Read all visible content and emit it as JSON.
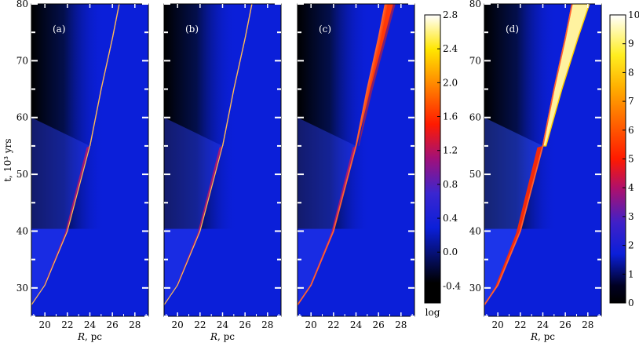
{
  "chart_data": [
    {
      "type": "heatmap",
      "panel_label": "(a)",
      "xlabel": "R, pc",
      "ylabel": "t, 10³ yrs",
      "xlim": [
        18.8,
        29.2
      ],
      "ylim": [
        25,
        80
      ],
      "xticks": [
        "20",
        "22",
        "24",
        "26",
        "28"
      ],
      "yticks": [
        "30",
        "40",
        "50",
        "60",
        "70",
        "80"
      ],
      "colorbar": "log",
      "features": {
        "shock_track_R": [
          [
            18.8,
            27
          ],
          [
            20,
            30.5
          ],
          [
            22,
            40
          ],
          [
            24,
            55
          ],
          [
            25,
            65
          ],
          [
            26,
            74
          ],
          [
            26.6,
            80
          ]
        ],
        "emission_peak": 0.9,
        "post_55_width": "thin"
      }
    },
    {
      "type": "heatmap",
      "panel_label": "(b)",
      "xlabel": "R, pc",
      "ylabel": "",
      "xlim": [
        18.8,
        29.2
      ],
      "ylim": [
        25,
        80
      ],
      "xticks": [
        "20",
        "22",
        "24",
        "26",
        "28"
      ],
      "yticks": [],
      "colorbar": "log",
      "features": {
        "shock_track_R": [
          [
            18.8,
            27
          ],
          [
            20,
            30.5
          ],
          [
            22,
            40
          ],
          [
            24,
            55
          ],
          [
            25,
            65
          ],
          [
            26,
            74
          ],
          [
            26.6,
            80
          ]
        ],
        "emission_peak": 0.9,
        "post_55_width": "thin"
      }
    },
    {
      "type": "heatmap",
      "panel_label": "(c)",
      "xlabel": "",
      "ylabel": "",
      "xlim": [
        18.8,
        29.2
      ],
      "ylim": [
        25,
        80
      ],
      "xticks": [
        "20",
        "22",
        "24",
        "26",
        "28"
      ],
      "yticks": [],
      "colorbar": "log",
      "features": {
        "shock_track_R": [
          [
            18.8,
            27
          ],
          [
            20,
            30.5
          ],
          [
            22,
            40
          ],
          [
            24,
            55
          ],
          [
            25,
            65
          ],
          [
            26,
            74
          ],
          [
            26.6,
            80
          ]
        ],
        "emission_peak": 1.4,
        "post_55_width": "widening"
      }
    },
    {
      "type": "heatmap",
      "panel_label": "(d)",
      "xlabel": "R, pc",
      "ylabel": "",
      "xlim": [
        18.8,
        29.2
      ],
      "ylim": [
        25,
        80
      ],
      "xticks": [
        "20",
        "22",
        "24",
        "26",
        "28"
      ],
      "yticks": [
        "30",
        "40",
        "50",
        "60",
        "70",
        "80"
      ],
      "colorbar": "linear",
      "features": {
        "shock_track_R": [
          [
            18.8,
            27
          ],
          [
            20,
            30.5
          ],
          [
            22,
            40
          ],
          [
            24,
            55
          ],
          [
            25,
            65
          ],
          [
            26,
            74
          ],
          [
            26.6,
            80
          ]
        ],
        "emission_peak": 10,
        "post_55_width": "wide"
      }
    }
  ],
  "colorbars": [
    {
      "name": "log",
      "ticks": [
        "2.8",
        "2.4",
        "2.0",
        "1.6",
        "1.2",
        "0.8",
        "0.4",
        "0.0",
        "-0.4"
      ],
      "values": [
        2.8,
        2.4,
        2.0,
        1.6,
        1.2,
        0.8,
        0.4,
        0.0,
        -0.4
      ],
      "range": [
        -0.6,
        2.8
      ],
      "label": "log"
    },
    {
      "name": "linear",
      "ticks": [
        "10",
        "9",
        "8",
        "7",
        "6",
        "5",
        "4",
        "3",
        "2",
        "1",
        "0"
      ],
      "values": [
        10,
        9,
        8,
        7,
        6,
        5,
        4,
        3,
        2,
        1,
        0
      ],
      "range": [
        0,
        10
      ]
    }
  ],
  "colors": {
    "background_blue": "#0b1fd9",
    "dark": "#000000",
    "hot": "#ff2000",
    "yellow": "#ffe600",
    "white": "#ffffff"
  }
}
